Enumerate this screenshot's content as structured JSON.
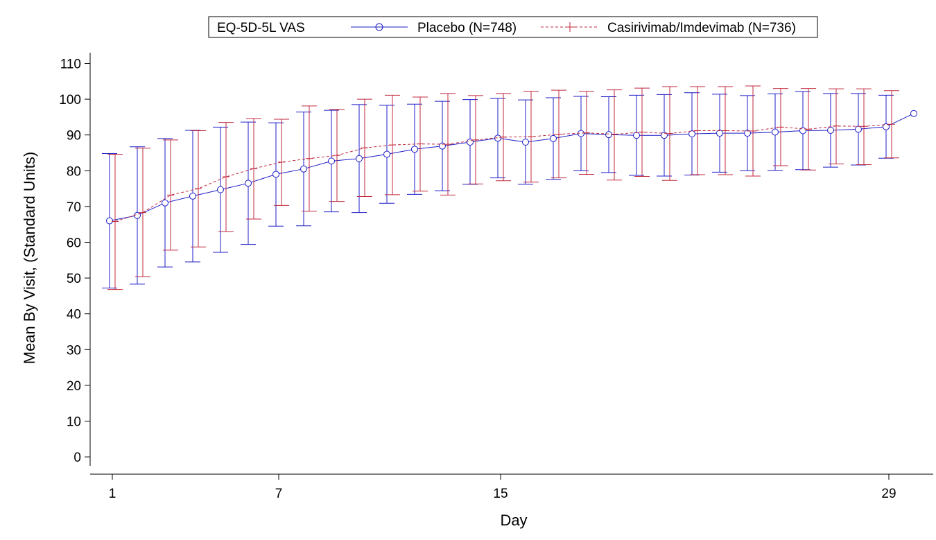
{
  "chart_data": {
    "type": "line",
    "title": "",
    "xlabel": "Day",
    "ylabel": "Mean By Visit, (Standard Units)",
    "xlim": [
      0.2,
      30.6
    ],
    "ylim": [
      -2.5,
      113
    ],
    "x_ticks": [
      1,
      7,
      15,
      29
    ],
    "y_ticks": [
      0,
      10,
      20,
      30,
      40,
      50,
      60,
      70,
      80,
      90,
      100,
      110
    ],
    "grid": false,
    "legend": {
      "title": "EQ-5D-5L VAS",
      "placement": "top-center"
    },
    "series": [
      {
        "name": "Placebo (N=748)",
        "color": "#1c1cc8",
        "marker": "circle",
        "line_style": "solid",
        "x": [
          0.9,
          1.9,
          2.9,
          3.9,
          4.9,
          5.9,
          6.9,
          7.9,
          8.9,
          9.9,
          10.9,
          11.9,
          12.9,
          13.9,
          14.9,
          15.9,
          16.9,
          17.9,
          18.9,
          19.9,
          20.9,
          21.9,
          22.9,
          23.9,
          24.9,
          25.9,
          26.9,
          27.9,
          28.9,
          29.9
        ],
        "mean": [
          66.0,
          67.5,
          71.0,
          72.9,
          74.7,
          76.5,
          79.0,
          80.5,
          82.7,
          83.4,
          84.6,
          86.0,
          86.9,
          88.0,
          89.1,
          88.0,
          89.0,
          90.4,
          90.1,
          89.9,
          89.9,
          90.3,
          90.5,
          90.5,
          90.8,
          91.2,
          91.3,
          91.6,
          92.3,
          96.0
        ],
        "lower": [
          47.2,
          48.3,
          53.1,
          54.5,
          57.2,
          59.4,
          64.5,
          64.6,
          68.5,
          68.3,
          70.9,
          73.4,
          74.4,
          76.2,
          78.0,
          76.2,
          77.6,
          80.0,
          79.5,
          78.7,
          78.5,
          78.8,
          79.6,
          80.0,
          80.1,
          80.3,
          81.0,
          81.6,
          83.5,
          null
        ],
        "upper": [
          84.8,
          86.7,
          89.0,
          91.3,
          92.2,
          93.6,
          93.4,
          96.4,
          96.9,
          98.5,
          98.3,
          98.6,
          99.4,
          99.9,
          100.2,
          99.8,
          100.4,
          100.8,
          100.7,
          101.1,
          101.3,
          101.8,
          101.4,
          101.0,
          101.5,
          102.1,
          101.6,
          101.6,
          101.1,
          null
        ]
      },
      {
        "name": "Casirivimab/Imdevimab (N=736)",
        "color": "#c0283c",
        "marker": "plus",
        "line_style": "dashed",
        "x": [
          1.1,
          2.1,
          3.1,
          4.1,
          5.1,
          6.1,
          7.1,
          8.1,
          9.1,
          10.1,
          11.1,
          12.1,
          13.1,
          14.1,
          15.1,
          16.1,
          17.1,
          18.1,
          19.1,
          20.1,
          21.1,
          22.1,
          23.1,
          24.1,
          25.1,
          26.1,
          27.1,
          28.1,
          29.1
        ],
        "mean": [
          65.8,
          68.3,
          73.2,
          75.0,
          78.3,
          80.6,
          82.4,
          83.4,
          84.3,
          86.4,
          87.2,
          87.5,
          87.4,
          88.6,
          89.4,
          89.5,
          90.2,
          90.6,
          90.2,
          90.8,
          90.4,
          91.2,
          91.2,
          91.1,
          92.2,
          91.6,
          92.5,
          92.4,
          93.0
        ],
        "lower": [
          46.8,
          50.4,
          57.8,
          58.7,
          63.0,
          66.5,
          70.3,
          68.7,
          71.4,
          72.8,
          73.3,
          74.3,
          73.2,
          76.3,
          77.2,
          76.8,
          78.0,
          79.0,
          77.4,
          78.4,
          77.3,
          78.9,
          78.9,
          78.5,
          81.4,
          80.2,
          81.9,
          81.7,
          83.6
        ],
        "upper": [
          84.6,
          86.3,
          88.6,
          91.2,
          93.5,
          94.6,
          94.4,
          98.1,
          97.2,
          100.0,
          101.1,
          100.6,
          101.6,
          101.0,
          101.6,
          102.2,
          102.5,
          102.2,
          102.6,
          103.1,
          103.5,
          103.5,
          103.5,
          103.7,
          103.0,
          103.0,
          102.9,
          102.9,
          102.4
        ]
      }
    ]
  }
}
